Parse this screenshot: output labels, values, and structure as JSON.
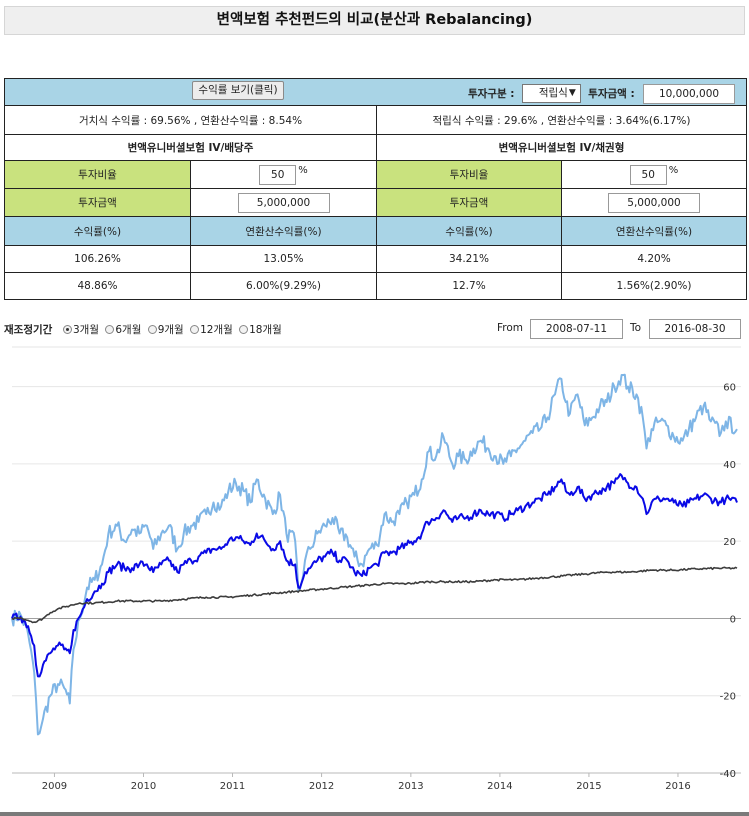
{
  "page_title": "변액보험 추천펀드의 비교(분산과 Rebalancing)",
  "toolbar": {
    "returns_button": "수익률 보기(클릭)",
    "invest_type_label": "투자구분 :",
    "invest_type_value": "적립식",
    "invest_amount_label": "투자금액 :",
    "invest_amount_value": "10,000,000"
  },
  "summary": {
    "lump_sum": "거치식 수익률 : 69.56% , 연환산수익률 : 8.54%",
    "installment": "적립식 수익률 : 29.6% , 연환산수익률 : 3.64%(6.17%)"
  },
  "funds": [
    {
      "name": "변액유니버셜보험 IV/배당주",
      "ratio_label": "투자비율",
      "ratio_value": "50",
      "ratio_unit": "%",
      "amount_label": "투자금액",
      "amount_value": "5,000,000"
    },
    {
      "name": "변액유니버셜보험 IV/채권형",
      "ratio_label": "투자비율",
      "ratio_value": "50",
      "ratio_unit": "%",
      "amount_label": "투자금액",
      "amount_value": "5,000,000"
    }
  ],
  "results": {
    "headers": [
      "수익률(%)",
      "연환산수익률(%)",
      "수익률(%)",
      "연환산수익률(%)"
    ],
    "rows": [
      [
        "106.26%",
        "13.05%",
        "34.21%",
        "4.20%"
      ],
      [
        "48.86%",
        "6.00%(9.29%)",
        "12.7%",
        "1.56%(2.90%)"
      ]
    ]
  },
  "rebalance": {
    "label": "재조정기간",
    "options": [
      "3개월",
      "6개월",
      "9개월",
      "12개월",
      "18개월"
    ],
    "selected_index": 0
  },
  "date_range": {
    "from_label": "From",
    "from_value": "2008-07-11",
    "to_label": "To",
    "to_value": "2016-08-30"
  },
  "chart_data": {
    "type": "line",
    "x_range": [
      "2008-07-11",
      "2016-08-30"
    ],
    "x_ticks": [
      "2009",
      "2010",
      "2011",
      "2012",
      "2013",
      "2014",
      "2015",
      "2016"
    ],
    "y_range": [
      -40,
      70
    ],
    "y_ticks": [
      60,
      40,
      20,
      0,
      -20,
      -40
    ],
    "grid": "horizontal",
    "colors": {
      "dividend_fund": "#7eb5e6",
      "portfolio": "#0a0ae6",
      "bond_fund": "#3c3c3c",
      "zero_line": "#a0a0a0"
    },
    "series": [
      {
        "key": "dividend_fund",
        "color": "#7eb5e6",
        "width": 2.0,
        "points": [
          [
            "2008-07-11",
            0
          ],
          [
            "2008-08-15",
            1
          ],
          [
            "2008-09-15",
            -4
          ],
          [
            "2008-10-10",
            -14
          ],
          [
            "2008-10-25",
            -30
          ],
          [
            "2008-11-15",
            -26
          ],
          [
            "2008-12-15",
            -20
          ],
          [
            "2009-01-15",
            -17
          ],
          [
            "2009-02-10",
            -18
          ],
          [
            "2009-03-05",
            -22
          ],
          [
            "2009-03-20",
            -8
          ],
          [
            "2009-04-15",
            0
          ],
          [
            "2009-05-15",
            8
          ],
          [
            "2009-06-15",
            10
          ],
          [
            "2009-07-15",
            14
          ],
          [
            "2009-08-10",
            22
          ],
          [
            "2009-09-15",
            24
          ],
          [
            "2009-10-15",
            20
          ],
          [
            "2009-11-15",
            23
          ],
          [
            "2009-12-15",
            22
          ],
          [
            "2010-01-15",
            24
          ],
          [
            "2010-02-10",
            18
          ],
          [
            "2010-03-15",
            22
          ],
          [
            "2010-04-15",
            24
          ],
          [
            "2010-05-20",
            18
          ],
          [
            "2010-06-15",
            22
          ],
          [
            "2010-07-15",
            24
          ],
          [
            "2010-08-15",
            25
          ],
          [
            "2010-09-15",
            27
          ],
          [
            "2010-10-15",
            30
          ],
          [
            "2010-11-15",
            29
          ],
          [
            "2010-12-15",
            33
          ],
          [
            "2011-01-15",
            35
          ],
          [
            "2011-02-15",
            33
          ],
          [
            "2011-03-15",
            30
          ],
          [
            "2011-04-10",
            36
          ],
          [
            "2011-05-15",
            31
          ],
          [
            "2011-06-15",
            27
          ],
          [
            "2011-07-15",
            32
          ],
          [
            "2011-08-10",
            22
          ],
          [
            "2011-09-15",
            20
          ],
          [
            "2011-09-28",
            7
          ],
          [
            "2011-10-10",
            9
          ],
          [
            "2011-10-25",
            15
          ],
          [
            "2011-11-15",
            18
          ],
          [
            "2011-12-15",
            22
          ],
          [
            "2012-01-15",
            24
          ],
          [
            "2012-02-15",
            26
          ],
          [
            "2012-03-15",
            22
          ],
          [
            "2012-04-15",
            21
          ],
          [
            "2012-05-15",
            16
          ],
          [
            "2012-06-15",
            14
          ],
          [
            "2012-07-15",
            18
          ],
          [
            "2012-08-15",
            19
          ],
          [
            "2012-09-15",
            27
          ],
          [
            "2012-10-15",
            25
          ],
          [
            "2012-11-15",
            27
          ],
          [
            "2012-12-15",
            30
          ],
          [
            "2013-01-15",
            32
          ],
          [
            "2013-02-15",
            36
          ],
          [
            "2013-03-10",
            43
          ],
          [
            "2013-04-15",
            42
          ],
          [
            "2013-05-15",
            47
          ],
          [
            "2013-06-20",
            40
          ],
          [
            "2013-07-15",
            42
          ],
          [
            "2013-08-15",
            41
          ],
          [
            "2013-09-15",
            44
          ],
          [
            "2013-10-15",
            46
          ],
          [
            "2013-11-15",
            44
          ],
          [
            "2013-12-15",
            42
          ],
          [
            "2014-01-15",
            40
          ],
          [
            "2014-02-15",
            42
          ],
          [
            "2014-03-15",
            44
          ],
          [
            "2014-04-15",
            46
          ],
          [
            "2014-05-15",
            48
          ],
          [
            "2014-06-15",
            49
          ],
          [
            "2014-07-15",
            52
          ],
          [
            "2014-08-15",
            58
          ],
          [
            "2014-09-10",
            62
          ],
          [
            "2014-09-28",
            56
          ],
          [
            "2014-10-15",
            53
          ],
          [
            "2014-11-15",
            58
          ],
          [
            "2014-12-15",
            50
          ],
          [
            "2015-01-15",
            52
          ],
          [
            "2015-02-15",
            55
          ],
          [
            "2015-03-15",
            56
          ],
          [
            "2015-04-15",
            60
          ],
          [
            "2015-05-15",
            63
          ],
          [
            "2015-06-10",
            60
          ],
          [
            "2015-07-15",
            58
          ],
          [
            "2015-08-10",
            52
          ],
          [
            "2015-08-25",
            44
          ],
          [
            "2015-09-15",
            49
          ],
          [
            "2015-10-15",
            51
          ],
          [
            "2015-11-15",
            50
          ],
          [
            "2015-12-15",
            47
          ],
          [
            "2016-01-20",
            46
          ],
          [
            "2016-02-15",
            49
          ],
          [
            "2016-03-15",
            52
          ],
          [
            "2016-04-15",
            55
          ],
          [
            "2016-05-15",
            51
          ],
          [
            "2016-06-25",
            48
          ],
          [
            "2016-07-15",
            51
          ],
          [
            "2016-08-30",
            49
          ]
        ]
      },
      {
        "key": "portfolio",
        "color": "#0a0ae6",
        "width": 2.0,
        "points": [
          [
            "2008-07-11",
            0
          ],
          [
            "2008-08-15",
            0.5
          ],
          [
            "2008-09-15",
            -2
          ],
          [
            "2008-10-10",
            -7
          ],
          [
            "2008-10-25",
            -15
          ],
          [
            "2008-11-15",
            -12
          ],
          [
            "2008-12-15",
            -9
          ],
          [
            "2009-01-15",
            -7
          ],
          [
            "2009-02-10",
            -8
          ],
          [
            "2009-03-05",
            -9
          ],
          [
            "2009-03-20",
            -3
          ],
          [
            "2009-04-15",
            0.5
          ],
          [
            "2009-05-15",
            5
          ],
          [
            "2009-06-15",
            7
          ],
          [
            "2009-07-15",
            9
          ],
          [
            "2009-08-10",
            12
          ],
          [
            "2009-09-15",
            14
          ],
          [
            "2009-10-15",
            13
          ],
          [
            "2009-11-15",
            13
          ],
          [
            "2009-12-15",
            14
          ],
          [
            "2010-01-15",
            14
          ],
          [
            "2010-02-10",
            12
          ],
          [
            "2010-03-15",
            14
          ],
          [
            "2010-04-15",
            15
          ],
          [
            "2010-05-20",
            12
          ],
          [
            "2010-06-15",
            14
          ],
          [
            "2010-07-15",
            15
          ],
          [
            "2010-08-15",
            16
          ],
          [
            "2010-09-15",
            17
          ],
          [
            "2010-10-15",
            18
          ],
          [
            "2010-11-15",
            18
          ],
          [
            "2010-12-15",
            20
          ],
          [
            "2011-01-15",
            21
          ],
          [
            "2011-02-15",
            20
          ],
          [
            "2011-03-15",
            19
          ],
          [
            "2011-04-10",
            22
          ],
          [
            "2011-05-15",
            20
          ],
          [
            "2011-06-15",
            18
          ],
          [
            "2011-07-15",
            20
          ],
          [
            "2011-08-10",
            15
          ],
          [
            "2011-09-15",
            14
          ],
          [
            "2011-09-28",
            8
          ],
          [
            "2011-10-10",
            9
          ],
          [
            "2011-10-25",
            12
          ],
          [
            "2011-11-15",
            13
          ],
          [
            "2011-12-15",
            15
          ],
          [
            "2012-01-15",
            16
          ],
          [
            "2012-02-15",
            17
          ],
          [
            "2012-03-15",
            15
          ],
          [
            "2012-04-15",
            15
          ],
          [
            "2012-05-15",
            12
          ],
          [
            "2012-06-15",
            11
          ],
          [
            "2012-07-15",
            13
          ],
          [
            "2012-08-15",
            14
          ],
          [
            "2012-09-15",
            17
          ],
          [
            "2012-10-15",
            17
          ],
          [
            "2012-11-15",
            18
          ],
          [
            "2012-12-15",
            19
          ],
          [
            "2013-01-15",
            20
          ],
          [
            "2013-02-15",
            22
          ],
          [
            "2013-03-10",
            25
          ],
          [
            "2013-04-15",
            26
          ],
          [
            "2013-05-15",
            28
          ],
          [
            "2013-06-20",
            25
          ],
          [
            "2013-07-15",
            26
          ],
          [
            "2013-08-15",
            26
          ],
          [
            "2013-09-15",
            27
          ],
          [
            "2013-10-15",
            28
          ],
          [
            "2013-11-15",
            27
          ],
          [
            "2013-12-15",
            27
          ],
          [
            "2014-01-15",
            26
          ],
          [
            "2014-02-15",
            27
          ],
          [
            "2014-03-15",
            28
          ],
          [
            "2014-04-15",
            29
          ],
          [
            "2014-05-15",
            30
          ],
          [
            "2014-06-15",
            31
          ],
          [
            "2014-07-15",
            32
          ],
          [
            "2014-08-15",
            34
          ],
          [
            "2014-09-10",
            36
          ],
          [
            "2014-09-28",
            33
          ],
          [
            "2014-10-15",
            32
          ],
          [
            "2014-11-15",
            34
          ],
          [
            "2014-12-15",
            31
          ],
          [
            "2015-01-15",
            32
          ],
          [
            "2015-02-15",
            33
          ],
          [
            "2015-03-15",
            34
          ],
          [
            "2015-04-15",
            35
          ],
          [
            "2015-05-15",
            37
          ],
          [
            "2015-06-10",
            35
          ],
          [
            "2015-07-15",
            34
          ],
          [
            "2015-08-10",
            31
          ],
          [
            "2015-08-25",
            27
          ],
          [
            "2015-09-15",
            30
          ],
          [
            "2015-10-15",
            31
          ],
          [
            "2015-11-15",
            31
          ],
          [
            "2015-12-15",
            30
          ],
          [
            "2016-01-20",
            29
          ],
          [
            "2016-02-15",
            30
          ],
          [
            "2016-03-15",
            31
          ],
          [
            "2016-04-15",
            32
          ],
          [
            "2016-05-15",
            31
          ],
          [
            "2016-06-25",
            30
          ],
          [
            "2016-07-15",
            31
          ],
          [
            "2016-08-30",
            30
          ]
        ]
      },
      {
        "key": "bond_fund",
        "color": "#3c3c3c",
        "width": 1.6,
        "points": [
          [
            "2008-07-11",
            0
          ],
          [
            "2008-08-15",
            0.2
          ],
          [
            "2008-09-15",
            -0.5
          ],
          [
            "2008-10-15",
            -1
          ],
          [
            "2008-11-15",
            0
          ],
          [
            "2008-12-15",
            1.5
          ],
          [
            "2009-01-15",
            2.5
          ],
          [
            "2009-02-15",
            3
          ],
          [
            "2009-03-15",
            3.5
          ],
          [
            "2009-04-15",
            4
          ],
          [
            "2009-06-15",
            4
          ],
          [
            "2009-09-15",
            4.5
          ],
          [
            "2009-12-15",
            4.5
          ],
          [
            "2010-03-15",
            4.5
          ],
          [
            "2010-06-15",
            5
          ],
          [
            "2010-09-15",
            5.5
          ],
          [
            "2010-12-15",
            5.5
          ],
          [
            "2011-03-15",
            6
          ],
          [
            "2011-06-15",
            6.5
          ],
          [
            "2011-09-15",
            7
          ],
          [
            "2011-12-15",
            7.5
          ],
          [
            "2012-03-15",
            8
          ],
          [
            "2012-06-15",
            8.5
          ],
          [
            "2012-09-15",
            9
          ],
          [
            "2012-12-15",
            9
          ],
          [
            "2013-03-15",
            9.5
          ],
          [
            "2013-06-15",
            9.5
          ],
          [
            "2013-09-15",
            9.5
          ],
          [
            "2013-12-15",
            10
          ],
          [
            "2014-03-15",
            10
          ],
          [
            "2014-06-15",
            10.5
          ],
          [
            "2014-09-15",
            11
          ],
          [
            "2014-12-15",
            11.5
          ],
          [
            "2015-03-15",
            12
          ],
          [
            "2015-06-15",
            12
          ],
          [
            "2015-09-15",
            12.5
          ],
          [
            "2015-12-15",
            12.5
          ],
          [
            "2016-03-15",
            12.8
          ],
          [
            "2016-06-15",
            13
          ],
          [
            "2016-08-30",
            13
          ]
        ]
      }
    ]
  }
}
